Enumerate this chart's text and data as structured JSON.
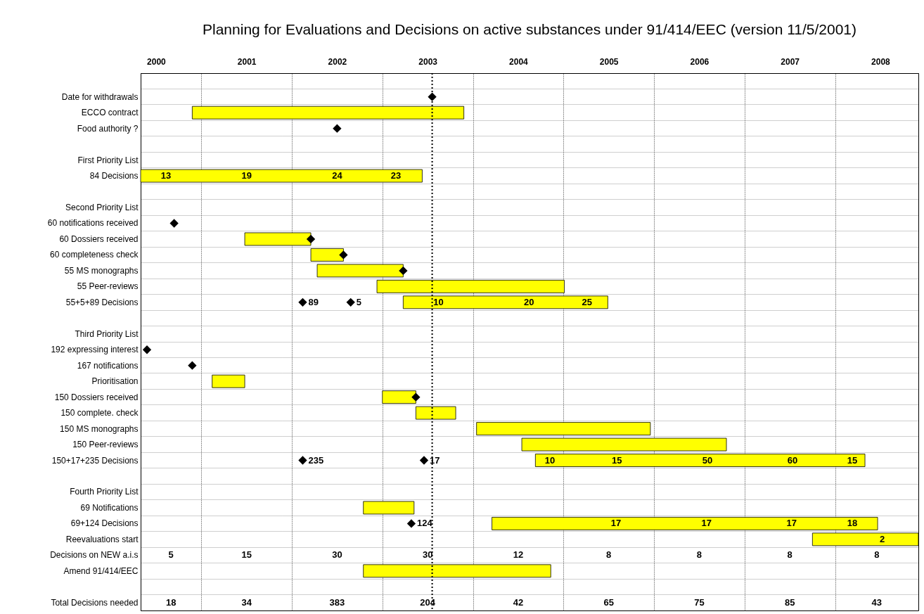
{
  "chart_data": {
    "type": "bar",
    "orientation": "horizontal",
    "title": "Planning for Evaluations and Decisions on active substances under 91/414/EEC (version 11/5/2001)",
    "categories": [
      null,
      "Date for withdrawals",
      "ECCO contract",
      "Food authority ?",
      null,
      "First Priority List",
      "84 Decisions",
      null,
      "Second Priority List",
      "60 notifications received",
      "60 Dossiers received",
      "60 completeness check",
      "55 MS monographs",
      "55 Peer-reviews",
      "55+5+89 Decisions",
      null,
      "Third Priority List",
      "192 expressing interest",
      "167 notifications",
      "Prioritisation",
      "150 Dossiers received",
      "150 complete. check",
      "150 MS monographs",
      "150 Peer-reviews",
      "150+17+235 Decisions",
      null,
      "Fourth Priority List",
      "69 Notifications",
      "69+124 Decisions",
      "Reevaluations start",
      "Decisions on NEW a.i.s",
      "Amend 91/414/EEC",
      null,
      "Total Decisions needed"
    ],
    "series": [
      {
        "color": "#ffff00",
        "base": [
          null,
          null,
          2000.9,
          null,
          null,
          null,
          2000.33,
          null,
          null,
          null,
          2001.48,
          2002.21,
          2002.28,
          2002.94,
          2003.23,
          null,
          null,
          null,
          null,
          2001.12,
          2003.0,
          2003.37,
          2004.04,
          2004.54,
          2004.69,
          null,
          null,
          2002.79,
          2004.21,
          2007.75,
          null,
          2002.79,
          null,
          null
        ],
        "values": [
          null,
          null,
          3.0,
          null,
          null,
          null,
          3.11,
          null,
          null,
          null,
          0.73,
          0.36,
          0.95,
          2.07,
          2.26,
          null,
          null,
          null,
          null,
          0.36,
          0.37,
          0.44,
          1.92,
          2.26,
          3.64,
          null,
          null,
          0.56,
          4.26,
          1.17,
          null,
          2.07,
          null,
          null
        ]
      },
      {
        "type": "scatter",
        "color": "#000000",
        "marker": "diamond",
        "values": [
          null,
          2003.55,
          null,
          2002.5,
          null,
          null,
          null,
          null,
          null,
          2000.7,
          2002.21,
          2002.57,
          2003.23,
          null,
          2002.12,
          null,
          null,
          2000.4,
          2000.9,
          null,
          2003.37,
          null,
          null,
          null,
          2002.12,
          null,
          null,
          null,
          2003.32,
          null,
          null,
          null,
          null,
          null
        ]
      },
      {
        "type": "scatter",
        "color": "#000000",
        "marker": "diamond",
        "values": [
          null,
          null,
          null,
          null,
          null,
          null,
          null,
          null,
          null,
          null,
          null,
          null,
          null,
          null,
          2002.65,
          null,
          null,
          null,
          null,
          null,
          null,
          null,
          null,
          null,
          2003.46,
          null,
          null,
          null,
          null,
          null,
          null,
          null,
          null,
          null
        ]
      }
    ],
    "xlim": [
      2000.33,
      2008.92
    ],
    "xticks": [
      {
        "value": 2000.5,
        "label": "2000"
      },
      {
        "value": 2001,
        "label": null
      },
      {
        "value": 2001.5,
        "label": "2001"
      },
      {
        "value": 2002,
        "label": null
      },
      {
        "value": 2002.5,
        "label": "2002"
      },
      {
        "value": 2003,
        "label": null
      },
      {
        "value": 2003.5,
        "label": "2003"
      },
      {
        "value": 2004,
        "label": null
      },
      {
        "value": 2004.5,
        "label": "2004"
      },
      {
        "value": 2005,
        "label": null
      },
      {
        "value": 2005.5,
        "label": "2005"
      },
      {
        "value": 2006,
        "label": null
      },
      {
        "value": 2006.5,
        "label": "2006"
      },
      {
        "value": 2007,
        "label": null
      },
      {
        "value": 2007.5,
        "label": "2007"
      },
      {
        "value": 2008,
        "label": null
      },
      {
        "value": 2008.5,
        "label": "2008"
      }
    ],
    "ref_lines": [
      {
        "axis": "x",
        "value": 2003.55,
        "color": "#000000",
        "line_style": "dotted"
      }
    ],
    "grid": true,
    "annotations": [
      {
        "text": "89",
        "x": 2002.12,
        "y": "55+5+89 Decisions"
      },
      {
        "text": "5",
        "x": 2002.65,
        "y": "55+5+89 Decisions"
      },
      {
        "text": "235",
        "x": 2002.12,
        "y": "150+17+235 Decisions"
      },
      {
        "text": "17",
        "x": 2003.46,
        "y": "150+17+235 Decisions"
      },
      {
        "text": "124",
        "x": 2003.32,
        "y": "69+124 Decisions"
      },
      {
        "text": "13",
        "x": 2000.61,
        "y": "84 Decisions"
      },
      {
        "text": "19",
        "x": 2001.5,
        "y": "84 Decisions"
      },
      {
        "text": "24",
        "x": 2002.5,
        "y": "84 Decisions"
      },
      {
        "text": "23",
        "x": 2003.15,
        "y": "84 Decisions"
      },
      {
        "text": "10",
        "x": 2003.62,
        "y": "55+5+89 Decisions"
      },
      {
        "text": "20",
        "x": 2004.62,
        "y": "55+5+89 Decisions"
      },
      {
        "text": "25",
        "x": 2005.26,
        "y": "55+5+89 Decisions"
      },
      {
        "text": "10",
        "x": 2004.85,
        "y": "150+17+235 Decisions"
      },
      {
        "text": "15",
        "x": 2005.59,
        "y": "150+17+235 Decisions"
      },
      {
        "text": "50",
        "x": 2006.59,
        "y": "150+17+235 Decisions"
      },
      {
        "text": "60",
        "x": 2007.53,
        "y": "150+17+235 Decisions"
      },
      {
        "text": "15",
        "x": 2008.19,
        "y": "150+17+235 Decisions"
      },
      {
        "text": "17",
        "x": 2005.58,
        "y": "69+124 Decisions"
      },
      {
        "text": "17",
        "x": 2006.58,
        "y": "69+124 Decisions"
      },
      {
        "text": "17",
        "x": 2007.52,
        "y": "69+124 Decisions"
      },
      {
        "text": "18",
        "x": 2008.19,
        "y": "69+124 Decisions"
      },
      {
        "text": "2",
        "x": 2008.52,
        "y": "Reevaluations start"
      },
      "5",
      "15",
      "30",
      "30",
      "12",
      "8",
      "8",
      "8",
      "8",
      "18",
      "34",
      "383",
      "204",
      "42",
      "65",
      "75",
      "85",
      "43"
    ]
  }
}
